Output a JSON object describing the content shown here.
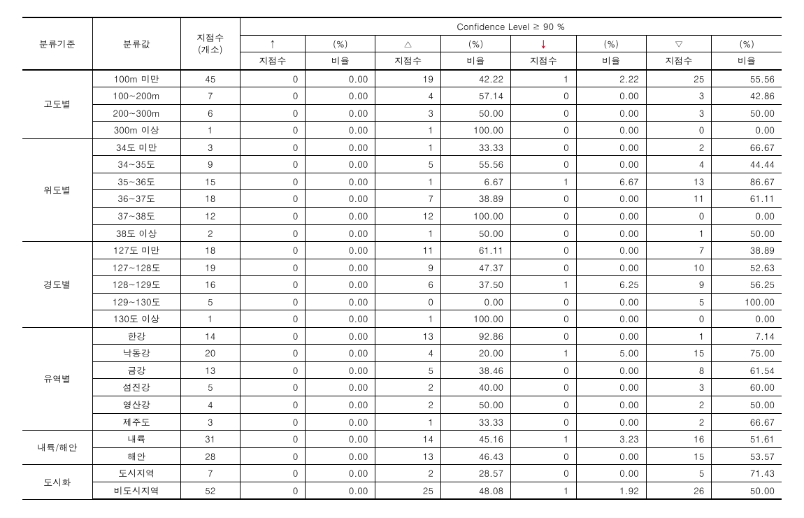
{
  "type": "table",
  "background_color": "#ffffff",
  "border_color": "#000000",
  "font_size_pt": 10,
  "down_arrow_color": "#c00020",
  "header": {
    "criteria": "분류기준",
    "bin": "분류값",
    "n_sites": "지점수",
    "n_sites_sub": "(개소)",
    "conf_header": "Confidence Level ≥ 90 %",
    "symbols": [
      "↑",
      "△",
      "↓",
      "▽"
    ],
    "sym_sub_count": "지점수",
    "sym_sub_pct": "비율",
    "pct_label": "(%)"
  },
  "groups": [
    {
      "label": "고도별",
      "rows": [
        {
          "bin": "100m 미만",
          "n": 45,
          "up_n": 0,
          "up_p": "0.00",
          "tri_n": 19,
          "tri_p": "42.22",
          "dn_n": 1,
          "dn_p": "2.22",
          "dtri_n": 25,
          "dtri_p": "55.56"
        },
        {
          "bin": "100~200m",
          "n": 7,
          "up_n": 0,
          "up_p": "0.00",
          "tri_n": 4,
          "tri_p": "57.14",
          "dn_n": 0,
          "dn_p": "0.00",
          "dtri_n": 3,
          "dtri_p": "42.86"
        },
        {
          "bin": "200~300m",
          "n": 6,
          "up_n": 0,
          "up_p": "0.00",
          "tri_n": 3,
          "tri_p": "50.00",
          "dn_n": 0,
          "dn_p": "0.00",
          "dtri_n": 3,
          "dtri_p": "50.00"
        },
        {
          "bin": "300m 이상",
          "n": 1,
          "up_n": 0,
          "up_p": "0.00",
          "tri_n": 1,
          "tri_p": "100.00",
          "dn_n": 0,
          "dn_p": "0.00",
          "dtri_n": 0,
          "dtri_p": "0.00"
        }
      ]
    },
    {
      "label": "위도별",
      "rows": [
        {
          "bin": "34도 미만",
          "n": 3,
          "up_n": 0,
          "up_p": "0.00",
          "tri_n": 1,
          "tri_p": "33.33",
          "dn_n": 0,
          "dn_p": "0.00",
          "dtri_n": 2,
          "dtri_p": "66.67"
        },
        {
          "bin": "34~35도",
          "n": 9,
          "up_n": 0,
          "up_p": "0.00",
          "tri_n": 5,
          "tri_p": "55.56",
          "dn_n": 0,
          "dn_p": "0.00",
          "dtri_n": 4,
          "dtri_p": "44.44"
        },
        {
          "bin": "35~36도",
          "n": 15,
          "up_n": 0,
          "up_p": "0.00",
          "tri_n": 1,
          "tri_p": "6.67",
          "dn_n": 1,
          "dn_p": "6.67",
          "dtri_n": 13,
          "dtri_p": "86.67"
        },
        {
          "bin": "36~37도",
          "n": 18,
          "up_n": 0,
          "up_p": "0.00",
          "tri_n": 7,
          "tri_p": "38.89",
          "dn_n": 0,
          "dn_p": "0.00",
          "dtri_n": 11,
          "dtri_p": "61.11"
        },
        {
          "bin": "37~38도",
          "n": 12,
          "up_n": 0,
          "up_p": "0.00",
          "tri_n": 12,
          "tri_p": "100.00",
          "dn_n": 0,
          "dn_p": "0.00",
          "dtri_n": 0,
          "dtri_p": "0.00"
        },
        {
          "bin": "38도 이상",
          "n": 2,
          "up_n": 0,
          "up_p": "0.00",
          "tri_n": 1,
          "tri_p": "50.00",
          "dn_n": 0,
          "dn_p": "0.00",
          "dtri_n": 1,
          "dtri_p": "50.00"
        }
      ]
    },
    {
      "label": "경도별",
      "rows": [
        {
          "bin": "127도 미만",
          "n": 18,
          "up_n": 0,
          "up_p": "0.00",
          "tri_n": 11,
          "tri_p": "61.11",
          "dn_n": 0,
          "dn_p": "0.00",
          "dtri_n": 7,
          "dtri_p": "38.89"
        },
        {
          "bin": "127~128도",
          "n": 19,
          "up_n": 0,
          "up_p": "0.00",
          "tri_n": 9,
          "tri_p": "47.37",
          "dn_n": 0,
          "dn_p": "0.00",
          "dtri_n": 10,
          "dtri_p": "52.63"
        },
        {
          "bin": "128~129도",
          "n": 16,
          "up_n": 0,
          "up_p": "0.00",
          "tri_n": 6,
          "tri_p": "37.50",
          "dn_n": 1,
          "dn_p": "6.25",
          "dtri_n": 9,
          "dtri_p": "56.25"
        },
        {
          "bin": "129~130도",
          "n": 5,
          "up_n": 0,
          "up_p": "0.00",
          "tri_n": 0,
          "tri_p": "0.00",
          "dn_n": 0,
          "dn_p": "0.00",
          "dtri_n": 5,
          "dtri_p": "100.00"
        },
        {
          "bin": "130도 이상",
          "n": 1,
          "up_n": 0,
          "up_p": "0.00",
          "tri_n": 1,
          "tri_p": "100.00",
          "dn_n": 0,
          "dn_p": "0.00",
          "dtri_n": 0,
          "dtri_p": "0.00"
        }
      ]
    },
    {
      "label": "유역별",
      "rows": [
        {
          "bin": "한강",
          "n": 14,
          "up_n": 0,
          "up_p": "0.00",
          "tri_n": 13,
          "tri_p": "92.86",
          "dn_n": 0,
          "dn_p": "0.00",
          "dtri_n": 1,
          "dtri_p": "7.14"
        },
        {
          "bin": "낙동강",
          "n": 20,
          "up_n": 0,
          "up_p": "0.00",
          "tri_n": 4,
          "tri_p": "20.00",
          "dn_n": 1,
          "dn_p": "5.00",
          "dtri_n": 15,
          "dtri_p": "75.00"
        },
        {
          "bin": "금강",
          "n": 13,
          "up_n": 0,
          "up_p": "0.00",
          "tri_n": 5,
          "tri_p": "38.46",
          "dn_n": 0,
          "dn_p": "0.00",
          "dtri_n": 8,
          "dtri_p": "61.54"
        },
        {
          "bin": "섬진강",
          "n": 5,
          "up_n": 0,
          "up_p": "0.00",
          "tri_n": 2,
          "tri_p": "40.00",
          "dn_n": 0,
          "dn_p": "0.00",
          "dtri_n": 3,
          "dtri_p": "60.00"
        },
        {
          "bin": "영산강",
          "n": 4,
          "up_n": 0,
          "up_p": "0.00",
          "tri_n": 2,
          "tri_p": "50.00",
          "dn_n": 0,
          "dn_p": "0.00",
          "dtri_n": 2,
          "dtri_p": "50.00"
        },
        {
          "bin": "제주도",
          "n": 3,
          "up_n": 0,
          "up_p": "0.00",
          "tri_n": 1,
          "tri_p": "33.33",
          "dn_n": 0,
          "dn_p": "0.00",
          "dtri_n": 2,
          "dtri_p": "66.67"
        }
      ]
    },
    {
      "label": "내륙/해안",
      "rows": [
        {
          "bin": "내륙",
          "n": 31,
          "up_n": 0,
          "up_p": "0.00",
          "tri_n": 14,
          "tri_p": "45.16",
          "dn_n": 1,
          "dn_p": "3.23",
          "dtri_n": 16,
          "dtri_p": "51.61"
        },
        {
          "bin": "해안",
          "n": 28,
          "up_n": 0,
          "up_p": "0.00",
          "tri_n": 13,
          "tri_p": "46.43",
          "dn_n": 0,
          "dn_p": "0.00",
          "dtri_n": 15,
          "dtri_p": "53.57"
        }
      ]
    },
    {
      "label": "도시화",
      "rows": [
        {
          "bin": "도시지역",
          "n": 7,
          "up_n": 0,
          "up_p": "0.00",
          "tri_n": 2,
          "tri_p": "28.57",
          "dn_n": 0,
          "dn_p": "0.00",
          "dtri_n": 5,
          "dtri_p": "71.43"
        },
        {
          "bin": "비도시지역",
          "n": 52,
          "up_n": 0,
          "up_p": "0.00",
          "tri_n": 25,
          "tri_p": "48.08",
          "dn_n": 1,
          "dn_p": "1.92",
          "dtri_n": 26,
          "dtri_p": "50.00"
        }
      ]
    }
  ]
}
